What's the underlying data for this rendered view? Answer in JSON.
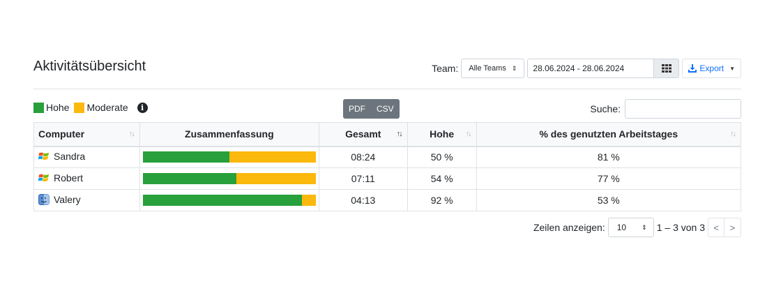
{
  "header": {
    "title": "Aktivitätsübersicht",
    "team_label": "Team:",
    "team_value": "Alle Teams",
    "date_range": "28.06.2024 - 28.06.2024",
    "export_label": "Export",
    "accent": "#0d6efd"
  },
  "legend": [
    {
      "label": "Hohe",
      "color": "#28a03c"
    },
    {
      "label": "Moderate",
      "color": "#fbb80d"
    }
  ],
  "export_buttons": [
    "PDF",
    "CSV"
  ],
  "search": {
    "label": "Suche:",
    "value": ""
  },
  "table": {
    "columns": [
      "Computer",
      "Zusammenfassung",
      "Gesamt",
      "Hohe",
      "% des genutzten Arbeitstages"
    ],
    "rows": [
      {
        "computer": "Sandra",
        "os": "windows",
        "high_fraction": 0.5,
        "total": "08:24",
        "high": "50 %",
        "workday": "81 %"
      },
      {
        "computer": "Robert",
        "os": "windows",
        "high_fraction": 0.54,
        "total": "07:11",
        "high": "54 %",
        "workday": "77 %"
      },
      {
        "computer": "Valery",
        "os": "mac",
        "high_fraction": 0.92,
        "total": "04:13",
        "high": "92 %",
        "workday": "53 %"
      }
    ]
  },
  "pager": {
    "rows_label": "Zeilen anzeigen:",
    "rows_value": "10",
    "range": "1 – 3 von 3",
    "prev": "<",
    "next": ">"
  }
}
